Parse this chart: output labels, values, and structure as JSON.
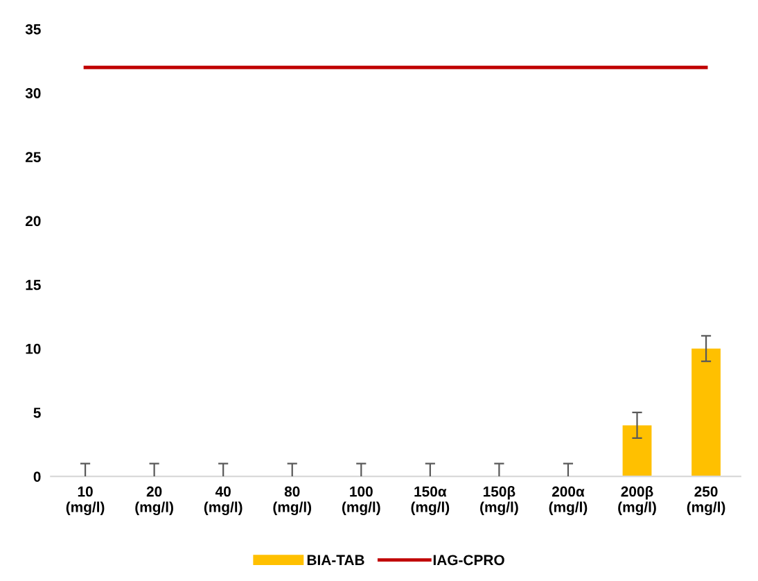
{
  "chart_data": {
    "type": "bar",
    "categories": [
      "10\n(mg/l)",
      "20\n(mg/l)",
      "40\n(mg/l)",
      "80\n(mg/l)",
      "100\n(mg/l)",
      "150α\n(mg/l)",
      "150β\n(mg/l)",
      "200α\n(mg/l)",
      "200β\n(mg/l)",
      "250\n(mg/l)"
    ],
    "series": [
      {
        "name": "BIA-TAB",
        "color": "#ffc000",
        "values": [
          0,
          0,
          0,
          0,
          0,
          0,
          0,
          0,
          4,
          10
        ],
        "errors": [
          [
            0,
            1
          ],
          [
            0,
            1
          ],
          [
            0,
            1
          ],
          [
            0,
            1
          ],
          [
            0,
            1
          ],
          [
            0,
            1
          ],
          [
            0,
            1
          ],
          [
            0,
            1
          ],
          [
            3,
            5
          ],
          [
            9,
            11
          ]
        ]
      },
      {
        "name": "IAG-CPRO",
        "type": "line",
        "color": "#c00000",
        "values": [
          32,
          32,
          32,
          32,
          32,
          32,
          32,
          32,
          32,
          32
        ]
      }
    ],
    "ylim": [
      0,
      35
    ],
    "yticks": [
      0,
      5,
      10,
      15,
      20,
      25,
      30,
      35
    ],
    "grid": false,
    "legend": "bottom"
  }
}
